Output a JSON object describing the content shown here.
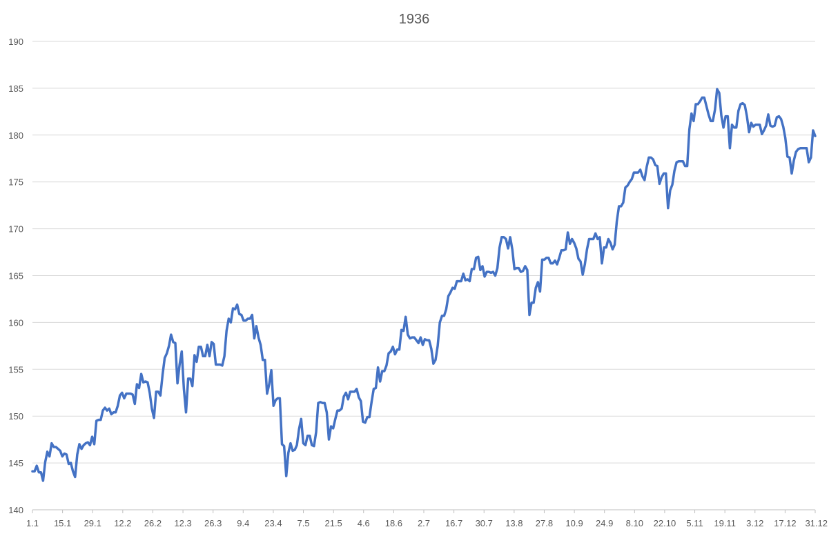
{
  "chart_data": {
    "type": "line",
    "title": "1936",
    "xlabel": "",
    "ylabel": "",
    "ylim": [
      140,
      190
    ],
    "yticks": [
      140,
      145,
      150,
      155,
      160,
      165,
      170,
      175,
      180,
      185,
      190
    ],
    "xticks": [
      "1.1",
      "15.1",
      "29.1",
      "12.2",
      "26.2",
      "12.3",
      "26.3",
      "9.4",
      "23.4",
      "7.5",
      "21.5",
      "4.6",
      "18.6",
      "2.7",
      "16.7",
      "30.7",
      "13.8",
      "27.8",
      "10.9",
      "24.9",
      "8.10",
      "22.10",
      "5.11",
      "19.11",
      "3.12",
      "17.12",
      "31.12"
    ],
    "grid": true,
    "legend": "none",
    "series_color": "#4472c4",
    "series": [
      {
        "values": [
          144.1,
          144.1,
          144.7,
          144.0,
          144.0,
          143.1,
          145.1,
          146.2,
          145.7,
          147.1,
          146.7,
          146.7,
          146.5,
          146.3,
          145.7,
          146.0,
          145.9,
          144.9,
          145.0,
          144.1,
          143.5,
          145.9,
          147.0,
          146.5,
          146.9,
          147.1,
          147.2,
          146.9,
          147.8,
          147.0,
          149.5,
          149.6,
          149.6,
          150.6,
          150.9,
          150.6,
          150.8,
          150.2,
          150.4,
          150.4,
          151.1,
          152.2,
          152.5,
          151.9,
          152.4,
          152.4,
          152.4,
          152.3,
          151.3,
          153.4,
          153.0,
          154.5,
          153.6,
          153.7,
          153.6,
          152.5,
          150.8,
          149.8,
          152.6,
          152.6,
          152.2,
          154.4,
          156.2,
          156.7,
          157.5,
          158.7,
          157.9,
          157.8,
          153.5,
          155.5,
          156.9,
          152.9,
          150.4,
          154.0,
          154.0,
          153.2,
          156.5,
          155.8,
          157.4,
          157.4,
          156.4,
          156.4,
          157.6,
          156.4,
          157.9,
          157.7,
          155.5,
          155.5,
          155.5,
          155.4,
          156.4,
          159.1,
          160.4,
          160.0,
          161.5,
          161.4,
          161.9,
          160.9,
          160.8,
          160.2,
          160.2,
          160.4,
          160.4,
          160.8,
          158.3,
          159.6,
          158.4,
          157.6,
          156.0,
          156.0,
          152.4,
          153.4,
          154.9,
          151.1,
          151.7,
          151.9,
          151.9,
          147.0,
          146.8,
          143.6,
          146.1,
          147.1,
          146.3,
          146.4,
          146.9,
          148.6,
          149.7,
          147.1,
          146.9,
          147.9,
          147.9,
          146.9,
          146.8,
          148.3,
          151.4,
          151.5,
          151.4,
          151.4,
          150.4,
          147.5,
          148.9,
          148.7,
          149.7,
          150.6,
          150.6,
          150.8,
          152.1,
          152.5,
          151.8,
          152.6,
          152.6,
          152.6,
          152.9,
          152.0,
          151.6,
          149.4,
          149.3,
          149.9,
          149.9,
          151.5,
          152.9,
          153.0,
          155.2,
          153.7,
          154.8,
          154.8,
          155.4,
          156.7,
          156.9,
          157.4,
          156.6,
          157.1,
          157.1,
          159.2,
          159.1,
          160.6,
          158.7,
          158.3,
          158.4,
          158.4,
          158.1,
          157.8,
          158.4,
          157.6,
          158.2,
          158.1,
          158.1,
          157.2,
          155.6,
          156.0,
          157.5,
          160.0,
          160.7,
          160.7,
          161.4,
          162.8,
          163.2,
          163.7,
          163.6,
          164.4,
          164.4,
          164.4,
          165.2,
          164.5,
          164.6,
          164.4,
          165.7,
          165.7,
          166.9,
          167.0,
          165.6,
          166.0,
          164.9,
          165.4,
          165.4,
          165.3,
          165.4,
          165.0,
          165.8,
          168.0,
          169.1,
          169.1,
          168.9,
          167.9,
          169.1,
          167.8,
          165.7,
          165.8,
          165.8,
          165.4,
          165.5,
          166.0,
          165.6,
          160.8,
          162.1,
          162.1,
          163.7,
          164.3,
          163.3,
          166.7,
          166.7,
          166.9,
          166.9,
          166.3,
          166.3,
          166.6,
          166.2,
          166.9,
          167.7,
          167.7,
          167.8,
          169.6,
          168.4,
          168.9,
          168.5,
          167.9,
          166.8,
          166.5,
          165.1,
          166.2,
          167.8,
          168.9,
          168.9,
          168.9,
          169.5,
          168.9,
          169.1,
          166.3,
          168.0,
          168.0,
          168.9,
          168.5,
          167.8,
          168.3,
          170.8,
          172.4,
          172.4,
          172.8,
          174.4,
          174.6,
          175.0,
          175.3,
          176.0,
          176.0,
          176.0,
          176.3,
          175.6,
          175.2,
          176.6,
          177.6,
          177.6,
          177.4,
          176.8,
          176.7,
          174.8,
          175.5,
          175.9,
          175.9,
          172.2,
          174.1,
          174.7,
          176.2,
          177.1,
          177.2,
          177.2,
          177.2,
          176.7,
          176.7,
          180.6,
          182.3,
          181.5,
          183.3,
          183.3,
          183.6,
          184.0,
          184.0,
          183.1,
          182.2,
          181.5,
          181.5,
          182.7,
          184.9,
          184.5,
          182.1,
          180.8,
          182.0,
          182.0,
          178.6,
          181.1,
          180.8,
          180.8,
          182.6,
          183.3,
          183.4,
          183.2,
          182.0,
          180.3,
          181.3,
          180.9,
          181.1,
          181.1,
          181.1,
          180.1,
          180.5,
          181.0,
          182.2,
          181.0,
          180.9,
          181.0,
          181.9,
          182.0,
          181.7,
          180.9,
          179.7,
          177.7,
          177.6,
          175.9,
          177.3,
          178.2,
          178.5,
          178.6,
          178.6,
          178.6,
          178.6,
          177.1,
          177.6,
          180.5,
          179.9
        ]
      }
    ]
  }
}
